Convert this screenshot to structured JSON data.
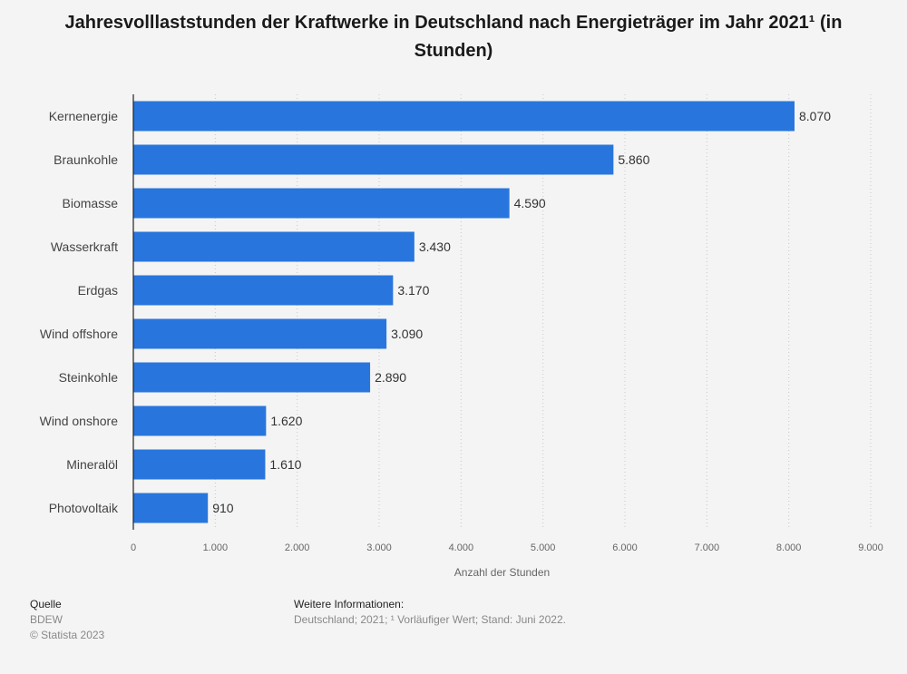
{
  "chart_data": {
    "type": "bar",
    "orientation": "horizontal",
    "title": "Jahresvolllaststunden der Kraftwerke in Deutschland nach Energieträger im Jahr 2021¹ (in Stunden)",
    "categories": [
      "Kernenergie",
      "Braunkohle",
      "Biomasse",
      "Wasserkraft",
      "Erdgas",
      "Wind offshore",
      "Steinkohle",
      "Wind onshore",
      "Mineralöl",
      "Photovoltaik"
    ],
    "values": [
      8070,
      5860,
      4590,
      3430,
      3170,
      3090,
      2890,
      1620,
      1610,
      910
    ],
    "value_labels": [
      "8.070",
      "5.860",
      "4.590",
      "3.430",
      "3.170",
      "3.090",
      "2.890",
      "1.620",
      "1.610",
      "910"
    ],
    "xlabel": "Anzahl der Stunden",
    "ylabel": "",
    "xlim": [
      0,
      9000
    ],
    "ticks": [
      0,
      1000,
      2000,
      3000,
      4000,
      5000,
      6000,
      7000,
      8000,
      9000
    ],
    "tick_labels": [
      "0",
      "1.000",
      "2.000",
      "3.000",
      "4.000",
      "5.000",
      "6.000",
      "7.000",
      "8.000",
      "9.000"
    ],
    "grid": "vertical dotted",
    "bar_color": "#2876dd"
  },
  "footer": {
    "source_heading": "Quelle",
    "source": "BDEW",
    "copyright": "© Statista 2023",
    "info_heading": "Weitere Informationen:",
    "info": "Deutschland; 2021; ¹ Vorläufiger Wert; Stand: Juni 2022."
  }
}
